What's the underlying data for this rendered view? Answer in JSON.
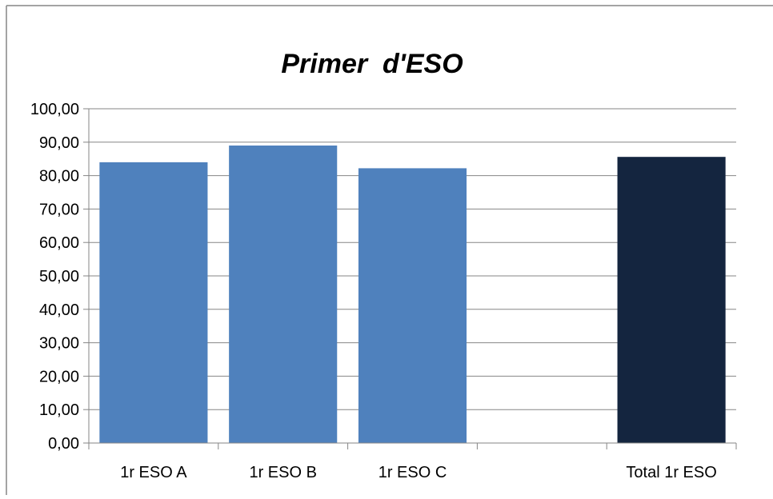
{
  "chart_data": {
    "type": "bar",
    "title": "Primer  d'ESO",
    "xlabel": "",
    "ylabel": "",
    "categories": [
      "1r ESO A",
      "1r ESO B",
      "1r ESO C",
      "",
      "Total 1r ESO"
    ],
    "values": [
      84.0,
      89.0,
      82.2,
      null,
      85.6
    ],
    "bar_colors": [
      "#4f81bd",
      "#4f81bd",
      "#4f81bd",
      "#4f81bd",
      "#14253f"
    ],
    "ylim": [
      0,
      100
    ],
    "yticks": [
      0,
      10,
      20,
      30,
      40,
      50,
      60,
      70,
      80,
      90,
      100
    ],
    "ytick_labels": [
      "0,00",
      "10,00",
      "20,00",
      "30,00",
      "40,00",
      "50,00",
      "60,00",
      "70,00",
      "80,00",
      "90,00",
      "100,00"
    ],
    "grid": true,
    "legend": "none",
    "colors": {
      "grid": "#868686",
      "axis": "#868686",
      "text": "#000000",
      "frame": "#868686"
    }
  }
}
